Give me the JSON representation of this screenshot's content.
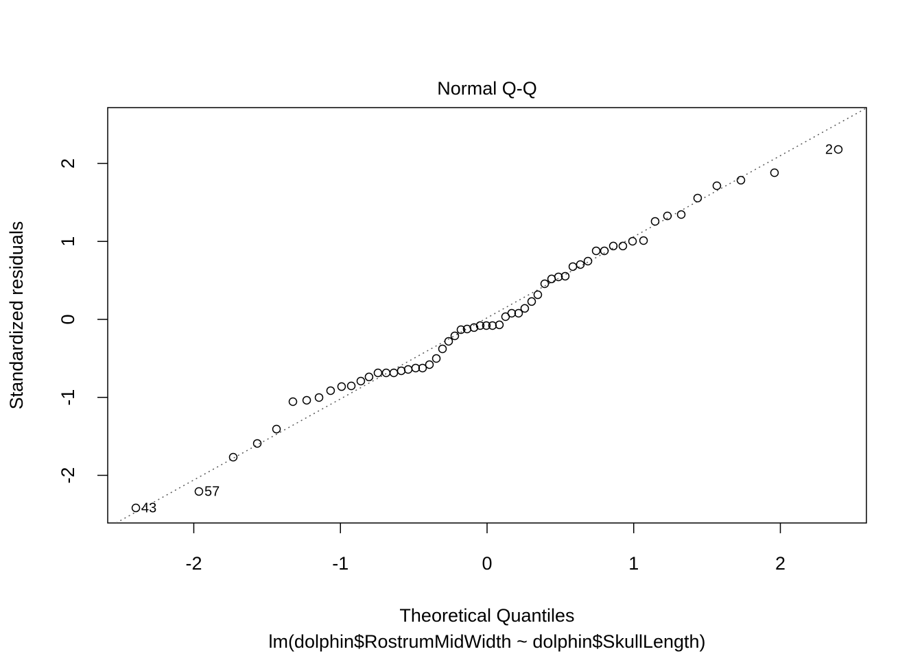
{
  "chart_data": {
    "type": "scatter",
    "title": "Normal Q-Q",
    "x_label": "Theoretical Quantiles",
    "subtitle": "lm(dolphin$RostrumMidWidth ~ dolphin$SkullLength)",
    "y_label": "Standardized residuals",
    "color": "#000000",
    "xlim": [
      -2.587,
      2.587
    ],
    "ylim": [
      -2.611,
      2.716
    ],
    "xticks": [
      -2,
      -1,
      0,
      1,
      2
    ],
    "yticks": [
      -2,
      -1,
      0,
      1,
      2
    ],
    "reference_line": {
      "intercept": 0.02,
      "slope": 1.04
    },
    "x": [
      -2.395,
      -1.965,
      -1.731,
      -1.567,
      -1.436,
      -1.324,
      -1.23,
      -1.146,
      -1.067,
      -0.992,
      -0.926,
      -0.861,
      -0.805,
      -0.744,
      -0.688,
      -0.636,
      -0.585,
      -0.538,
      -0.487,
      -0.44,
      -0.393,
      -0.346,
      -0.304,
      -0.262,
      -0.22,
      -0.178,
      -0.136,
      -0.089,
      -0.047,
      -0.005,
      0.037,
      0.084,
      0.126,
      0.168,
      0.215,
      0.257,
      0.304,
      0.346,
      0.393,
      0.44,
      0.487,
      0.533,
      0.585,
      0.636,
      0.688,
      0.744,
      0.8,
      0.861,
      0.926,
      0.992,
      1.067,
      1.146,
      1.23,
      1.324,
      1.436,
      1.567,
      1.731,
      1.96,
      2.395
    ],
    "values": [
      -2.418,
      -2.207,
      -1.767,
      -1.591,
      -1.407,
      -1.055,
      -1.037,
      -1.002,
      -0.914,
      -0.862,
      -0.853,
      -0.791,
      -0.738,
      -0.686,
      -0.686,
      -0.686,
      -0.659,
      -0.642,
      -0.624,
      -0.624,
      -0.58,
      -0.501,
      -0.378,
      -0.281,
      -0.211,
      -0.132,
      -0.123,
      -0.105,
      -0.079,
      -0.079,
      -0.079,
      -0.07,
      0.035,
      0.079,
      0.079,
      0.141,
      0.229,
      0.316,
      0.457,
      0.519,
      0.545,
      0.554,
      0.677,
      0.703,
      0.747,
      0.879,
      0.879,
      0.941,
      0.941,
      1.002,
      1.011,
      1.257,
      1.327,
      1.345,
      1.556,
      1.714,
      1.785,
      1.881,
      2.18
    ],
    "point_labels": [
      "43",
      "57",
      null,
      null,
      null,
      null,
      null,
      null,
      null,
      null,
      null,
      null,
      null,
      null,
      null,
      null,
      null,
      null,
      null,
      null,
      null,
      null,
      null,
      null,
      null,
      null,
      null,
      null,
      null,
      null,
      null,
      null,
      null,
      null,
      null,
      null,
      null,
      null,
      null,
      null,
      null,
      null,
      null,
      null,
      null,
      null,
      null,
      null,
      null,
      null,
      null,
      null,
      null,
      null,
      null,
      null,
      null,
      null,
      "2"
    ]
  }
}
